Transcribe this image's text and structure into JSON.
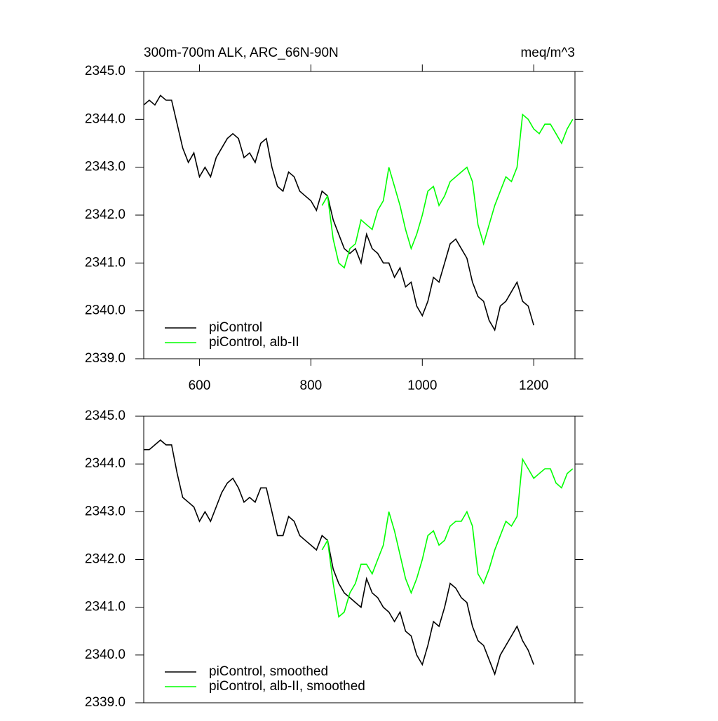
{
  "chart_data": [
    {
      "type": "line",
      "title": "300m-700m ALK, ARC_66N-90N",
      "units": "meq/m^3",
      "x": [
        500,
        510,
        520,
        530,
        540,
        550,
        560,
        570,
        580,
        590,
        600,
        610,
        620,
        630,
        640,
        650,
        660,
        670,
        680,
        690,
        700,
        710,
        720,
        730,
        740,
        750,
        760,
        770,
        780,
        790,
        800,
        810,
        820,
        830,
        840,
        850,
        860,
        870,
        880,
        890,
        900,
        910,
        920,
        930,
        940,
        950,
        960,
        970,
        980,
        990,
        1000,
        1010,
        1020,
        1030,
        1040,
        1050,
        1060,
        1070,
        1080,
        1090,
        1100,
        1110,
        1120,
        1130,
        1140,
        1150,
        1160,
        1170,
        1180,
        1190,
        1200,
        1210,
        1220,
        1230,
        1240,
        1250,
        1260,
        1270
      ],
      "series": [
        {
          "name": "piControl",
          "color": "#000000",
          "values": [
            2344.3,
            2344.4,
            2344.3,
            2344.5,
            2344.4,
            2344.4,
            2343.9,
            2343.4,
            2343.1,
            2343.3,
            2342.8,
            2343.0,
            2342.8,
            2343.2,
            2343.4,
            2343.6,
            2343.7,
            2343.6,
            2343.2,
            2343.3,
            2343.1,
            2343.5,
            2343.6,
            2343.0,
            2342.6,
            2342.5,
            2342.9,
            2342.8,
            2342.5,
            2342.4,
            2342.3,
            2342.1,
            2342.5,
            2342.4,
            2341.9,
            2341.6,
            2341.3,
            2341.2,
            2341.3,
            2341.0,
            2341.6,
            2341.3,
            2341.2,
            2341.0,
            2341.0,
            2340.7,
            2340.9,
            2340.5,
            2340.6,
            2340.1,
            2339.9,
            2340.2,
            2340.7,
            2340.6,
            2341.0,
            2341.4,
            2341.5,
            2341.3,
            2341.1,
            2340.6,
            2340.3,
            2340.2,
            2339.8,
            2339.6,
            2340.1,
            2340.2,
            2340.4,
            2340.6,
            2340.2,
            2340.1,
            2339.7,
            null,
            null,
            null,
            null,
            null,
            null,
            null
          ]
        },
        {
          "name": "piControl, alb-II",
          "color": "#00ff00",
          "values": [
            null,
            null,
            null,
            null,
            null,
            null,
            null,
            null,
            null,
            null,
            null,
            null,
            null,
            null,
            null,
            null,
            null,
            null,
            null,
            null,
            null,
            null,
            null,
            null,
            null,
            null,
            null,
            null,
            null,
            null,
            null,
            null,
            2342.2,
            2342.4,
            2341.5,
            2341.0,
            2340.9,
            2341.3,
            2341.4,
            2341.9,
            2341.8,
            2341.7,
            2342.1,
            2342.3,
            2343.0,
            2342.6,
            2342.2,
            2341.7,
            2341.3,
            2341.6,
            2342.0,
            2342.5,
            2342.6,
            2342.2,
            2342.4,
            2342.7,
            2342.8,
            2342.9,
            2343.0,
            2342.7,
            2341.8,
            2341.4,
            2341.8,
            2342.2,
            2342.5,
            2342.8,
            2342.7,
            2343.0,
            2344.1,
            2344.0,
            2343.8,
            2343.7,
            2343.9,
            2343.9,
            2343.7,
            2343.5,
            2343.8,
            2344.0
          ]
        }
      ],
      "xlim": [
        500,
        1274
      ],
      "xticks": [
        600,
        800,
        1000,
        1200
      ],
      "ylim": [
        2339,
        2345
      ],
      "yticks": [
        {
          "value": 2339,
          "label": "2339.0"
        },
        {
          "value": 2340,
          "label": "2340.0"
        },
        {
          "value": 2341,
          "label": "2341.0"
        },
        {
          "value": 2342,
          "label": "2342.0"
        },
        {
          "value": 2343,
          "label": "2343.0"
        },
        {
          "value": 2344,
          "label": "2344.0"
        },
        {
          "value": 2345,
          "label": "2345.0"
        }
      ],
      "legend": "lower left"
    },
    {
      "type": "line",
      "x": [
        500,
        510,
        520,
        530,
        540,
        550,
        560,
        570,
        580,
        590,
        600,
        610,
        620,
        630,
        640,
        650,
        660,
        670,
        680,
        690,
        700,
        710,
        720,
        730,
        740,
        750,
        760,
        770,
        780,
        790,
        800,
        810,
        820,
        830,
        840,
        850,
        860,
        870,
        880,
        890,
        900,
        910,
        920,
        930,
        940,
        950,
        960,
        970,
        980,
        990,
        1000,
        1010,
        1020,
        1030,
        1040,
        1050,
        1060,
        1070,
        1080,
        1090,
        1100,
        1110,
        1120,
        1130,
        1140,
        1150,
        1160,
        1170,
        1180,
        1190,
        1200,
        1210,
        1220,
        1230,
        1240,
        1250,
        1260,
        1270
      ],
      "series": [
        {
          "name": "piControl, smoothed",
          "color": "#000000",
          "values": [
            2344.3,
            2344.3,
            2344.4,
            2344.5,
            2344.4,
            2344.4,
            2343.8,
            2343.3,
            2343.2,
            2343.1,
            2342.8,
            2343.0,
            2342.8,
            2343.1,
            2343.4,
            2343.6,
            2343.7,
            2343.5,
            2343.2,
            2343.3,
            2343.2,
            2343.5,
            2343.5,
            2343.0,
            2342.5,
            2342.5,
            2342.9,
            2342.8,
            2342.5,
            2342.4,
            2342.3,
            2342.2,
            2342.5,
            2342.4,
            2341.8,
            2341.5,
            2341.3,
            2341.2,
            2341.1,
            2341.0,
            2341.6,
            2341.3,
            2341.2,
            2341.0,
            2340.9,
            2340.7,
            2340.9,
            2340.5,
            2340.4,
            2340.0,
            2339.8,
            2340.2,
            2340.7,
            2340.6,
            2341.0,
            2341.5,
            2341.4,
            2341.2,
            2341.1,
            2340.6,
            2340.3,
            2340.2,
            2339.9,
            2339.6,
            2340.0,
            2340.2,
            2340.4,
            2340.6,
            2340.3,
            2340.1,
            2339.8,
            null,
            null,
            null,
            null,
            null,
            null,
            null
          ]
        },
        {
          "name": "piControl, alb-II, smoothed",
          "color": "#00ff00",
          "values": [
            null,
            null,
            null,
            null,
            null,
            null,
            null,
            null,
            null,
            null,
            null,
            null,
            null,
            null,
            null,
            null,
            null,
            null,
            null,
            null,
            null,
            null,
            null,
            null,
            null,
            null,
            null,
            null,
            null,
            null,
            null,
            null,
            2342.2,
            2342.4,
            2341.5,
            2340.8,
            2340.9,
            2341.3,
            2341.5,
            2341.9,
            2341.9,
            2341.7,
            2342.0,
            2342.3,
            2343.0,
            2342.6,
            2342.1,
            2341.6,
            2341.3,
            2341.6,
            2342.0,
            2342.5,
            2342.6,
            2342.3,
            2342.4,
            2342.7,
            2342.8,
            2342.8,
            2343.0,
            2342.7,
            2341.7,
            2341.5,
            2341.8,
            2342.2,
            2342.5,
            2342.8,
            2342.7,
            2342.9,
            2344.1,
            2343.9,
            2343.7,
            2343.8,
            2343.9,
            2343.9,
            2343.6,
            2343.5,
            2343.8,
            2343.9
          ]
        }
      ],
      "xlim": [
        500,
        1274
      ],
      "ylim": [
        2339,
        2345
      ],
      "yticks": [
        {
          "value": 2339,
          "label": "2339.0"
        },
        {
          "value": 2340,
          "label": "2340.0"
        },
        {
          "value": 2341,
          "label": "2341.0"
        },
        {
          "value": 2342,
          "label": "2342.0"
        },
        {
          "value": 2343,
          "label": "2343.0"
        },
        {
          "value": 2344,
          "label": "2344.0"
        },
        {
          "value": 2345,
          "label": "2345.0"
        }
      ],
      "legend": "lower left"
    }
  ]
}
